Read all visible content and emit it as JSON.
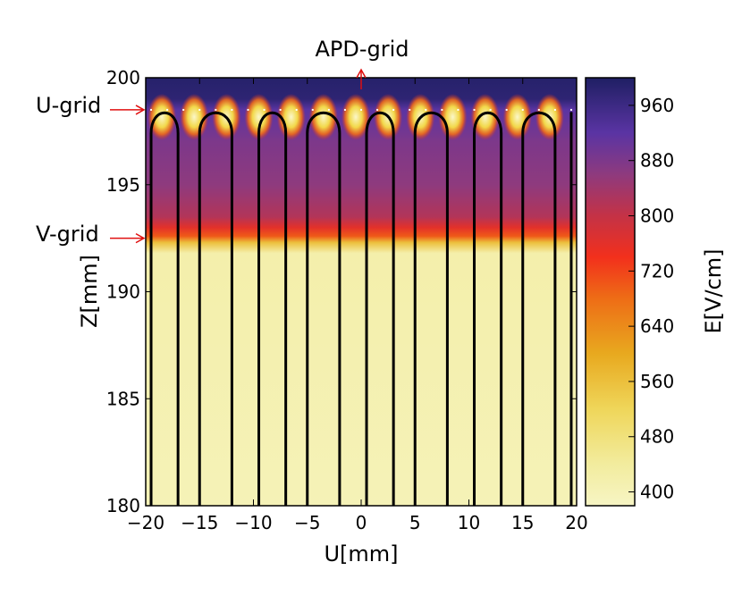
{
  "chart_data": [
    {
      "type": "heatmap",
      "title": "",
      "xlabel": "U[mm]",
      "ylabel": "Z[mm]",
      "xlim": [
        -20,
        20
      ],
      "ylim": [
        180,
        200
      ],
      "x_ticks": [
        -20,
        -15,
        -10,
        -5,
        0,
        5,
        10,
        15,
        20
      ],
      "x_tick_labels": [
        "−20",
        "−15",
        "−10",
        "−5",
        "0",
        "5",
        "10",
        "15",
        "20"
      ],
      "y_ticks": [
        180,
        185,
        190,
        195,
        200
      ],
      "y_tick_labels": [
        "180",
        "185",
        "190",
        "195",
        "200"
      ],
      "field_profile": [
        {
          "z": 180.0,
          "e": 400
        },
        {
          "z": 191.8,
          "e": 420
        },
        {
          "z": 192.3,
          "e": 560
        },
        {
          "z": 192.6,
          "e": 700
        },
        {
          "z": 193.0,
          "e": 760
        },
        {
          "z": 193.5,
          "e": 820
        },
        {
          "z": 195.0,
          "e": 860
        },
        {
          "z": 197.0,
          "e": 880
        },
        {
          "z": 198.5,
          "e": 920
        },
        {
          "z": 199.0,
          "e": 980
        },
        {
          "z": 200.0,
          "e": 990
        }
      ],
      "u_wires": {
        "z": 198.5,
        "x": [
          -18.5,
          -15.5,
          -12.5,
          -9.5,
          -6.5,
          -3.5,
          -0.5,
          2.5,
          5.5,
          8.5,
          11.5,
          14.5,
          17.5
        ],
        "peak_e": 400
      },
      "field_lines_x": [
        -19.5,
        -17,
        -15,
        -12,
        -9.5,
        -7,
        -5,
        -2,
        0.5,
        3,
        5,
        8,
        10.5,
        13,
        15,
        18,
        19.5
      ],
      "field_line_pairs": [
        [
          -19.5,
          -17
        ],
        [
          -15,
          -12
        ],
        [
          -9.5,
          -7
        ],
        [
          -5,
          -2
        ],
        [
          0.5,
          3
        ],
        [
          5,
          8
        ],
        [
          10.5,
          13
        ],
        [
          15,
          18
        ]
      ],
      "colorbar": {
        "label": "E[V/cm]",
        "range": [
          380,
          1000
        ],
        "ticks": [
          400,
          480,
          560,
          640,
          720,
          800,
          880,
          960
        ],
        "tick_labels": [
          "400",
          "480",
          "560",
          "640",
          "720",
          "800",
          "880",
          "960"
        ],
        "colormap": [
          {
            "e": 380,
            "color": "#f7f5c4"
          },
          {
            "e": 440,
            "color": "#f2ec9e"
          },
          {
            "e": 520,
            "color": "#efd65a"
          },
          {
            "e": 600,
            "color": "#e8a91f"
          },
          {
            "e": 680,
            "color": "#ee6d16"
          },
          {
            "e": 740,
            "color": "#f2301c"
          },
          {
            "e": 800,
            "color": "#c43246"
          },
          {
            "e": 860,
            "color": "#8e3a7e"
          },
          {
            "e": 920,
            "color": "#5a34a3"
          },
          {
            "e": 1000,
            "color": "#1f1f63"
          }
        ]
      },
      "annotations": [
        {
          "text": "APD-grid",
          "z": 200,
          "direction": "up"
        },
        {
          "text": "U-grid",
          "z": 198.5,
          "direction": "right"
        },
        {
          "text": "V-grid",
          "z": 192.5,
          "direction": "right"
        }
      ],
      "arrow_color": "#e01010",
      "line_color": "#000000"
    }
  ]
}
